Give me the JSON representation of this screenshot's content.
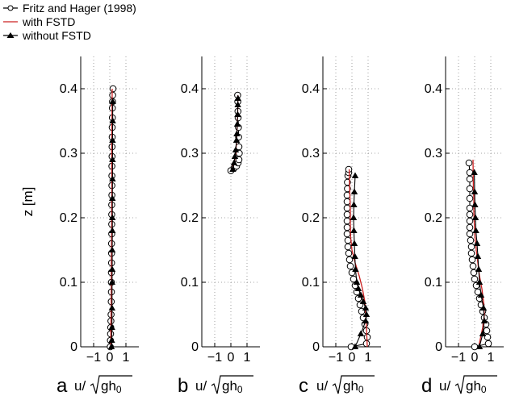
{
  "chart_data": [
    {
      "type": "line",
      "panel": "a",
      "xlabel": "u/√gh0",
      "ylabel": "z [m]",
      "xlim": [
        -1.8,
        1.8
      ],
      "ylim": [
        0,
        0.45
      ],
      "xticks": [
        -1,
        0,
        1
      ],
      "yticks": [
        0,
        0.1,
        0.2,
        0.3,
        0.4
      ],
      "grid": true,
      "series": [
        {
          "name": "Fritz and Hager (1998)",
          "marker": "open-circle",
          "color": "#000000",
          "x": [
            0.03,
            0.04,
            0.05,
            0.06,
            0.07,
            0.08,
            0.09,
            0.1,
            0.1,
            0.1,
            0.11,
            0.11,
            0.11,
            0.12,
            0.12,
            0.12,
            0.12,
            0.13,
            0.13,
            0.13,
            0.13,
            0.14,
            0.14,
            0.15,
            0.15,
            0.16,
            0.16,
            0.17,
            0.18,
            0.2
          ],
          "y": [
            0.0,
            0.01,
            0.02,
            0.03,
            0.04,
            0.05,
            0.07,
            0.085,
            0.1,
            0.115,
            0.13,
            0.145,
            0.16,
            0.175,
            0.19,
            0.205,
            0.22,
            0.235,
            0.25,
            0.265,
            0.28,
            0.295,
            0.31,
            0.325,
            0.34,
            0.355,
            0.37,
            0.38,
            0.39,
            0.4
          ]
        },
        {
          "name": "with FSTD",
          "marker": "none",
          "color": "#cc2020",
          "x": [
            0.06,
            0.07,
            0.09,
            0.1,
            0.1,
            0.11,
            0.12,
            0.12,
            0.13,
            0.12,
            0.12,
            0.13,
            0.14,
            0.15
          ],
          "y": [
            0.0,
            0.03,
            0.06,
            0.1,
            0.13,
            0.16,
            0.19,
            0.22,
            0.25,
            0.28,
            0.31,
            0.34,
            0.37,
            0.4
          ]
        },
        {
          "name": "without FSTD",
          "marker": "filled-triangle",
          "color": "#000000",
          "x": [
            0.1,
            0.12,
            0.13,
            0.14,
            0.14,
            0.15,
            0.15,
            0.16,
            0.16,
            0.16,
            0.17,
            0.17,
            0.17,
            0.18,
            0.18
          ],
          "y": [
            0.0,
            0.01,
            0.03,
            0.06,
            0.1,
            0.12,
            0.15,
            0.18,
            0.2,
            0.23,
            0.26,
            0.29,
            0.32,
            0.35,
            0.38
          ]
        }
      ]
    },
    {
      "type": "line",
      "panel": "b",
      "xlabel": "u/√gh0",
      "xlim": [
        -1.8,
        1.8
      ],
      "ylim": [
        0,
        0.45
      ],
      "xticks": [
        -1,
        0,
        1
      ],
      "yticks": [
        0,
        0.1,
        0.2,
        0.3,
        0.4
      ],
      "grid": true,
      "series": [
        {
          "name": "Fritz and Hager (1998)",
          "marker": "open-circle",
          "color": "#000000",
          "x": [
            0.0,
            0.2,
            0.35,
            0.45,
            0.5,
            0.52,
            0.5,
            0.48,
            0.47,
            0.45,
            0.44,
            0.43,
            0.42
          ],
          "y": [
            0.273,
            0.277,
            0.28,
            0.285,
            0.29,
            0.3,
            0.31,
            0.325,
            0.34,
            0.355,
            0.365,
            0.38,
            0.39
          ]
        },
        {
          "name": "with FSTD",
          "marker": "none",
          "color": "#cc2020",
          "x": [
            0.02,
            0.1,
            0.2,
            0.28,
            0.33,
            0.37,
            0.4,
            0.42,
            0.43,
            0.44
          ],
          "y": [
            0.273,
            0.278,
            0.285,
            0.295,
            0.31,
            0.33,
            0.35,
            0.36,
            0.375,
            0.39
          ]
        },
        {
          "name": "without FSTD",
          "marker": "filled-triangle",
          "color": "#000000",
          "x": [
            0.12,
            0.2,
            0.25,
            0.3,
            0.35,
            0.37,
            0.4,
            0.42,
            0.43,
            0.44
          ],
          "y": [
            0.275,
            0.285,
            0.295,
            0.305,
            0.32,
            0.33,
            0.345,
            0.36,
            0.375,
            0.385
          ]
        }
      ]
    },
    {
      "type": "line",
      "panel": "c",
      "xlabel": "u/√gh0",
      "xlim": [
        -1.8,
        1.8
      ],
      "ylim": [
        0,
        0.45
      ],
      "xticks": [
        -1,
        0,
        1
      ],
      "yticks": [
        0,
        0.1,
        0.2,
        0.3,
        0.4
      ],
      "grid": true,
      "series": [
        {
          "name": "Fritz and Hager (1998)",
          "marker": "open-circle",
          "color": "#000000",
          "x": [
            -0.05,
            0.9,
            0.95,
            0.9,
            0.8,
            0.7,
            0.6,
            0.5,
            0.4,
            0.3,
            0.2,
            0.1,
            0.0,
            -0.1,
            -0.15,
            -0.2,
            -0.25,
            -0.25,
            -0.3,
            -0.3,
            -0.3,
            -0.3,
            -0.3,
            -0.3,
            -0.3,
            -0.28,
            -0.28,
            -0.25,
            -0.2,
            -0.2
          ],
          "y": [
            0.0,
            0.005,
            0.015,
            0.025,
            0.035,
            0.045,
            0.055,
            0.065,
            0.075,
            0.085,
            0.095,
            0.105,
            0.115,
            0.125,
            0.135,
            0.145,
            0.155,
            0.165,
            0.175,
            0.185,
            0.195,
            0.205,
            0.215,
            0.225,
            0.235,
            0.245,
            0.255,
            0.265,
            0.27,
            0.275
          ]
        },
        {
          "name": "with FSTD",
          "marker": "none",
          "color": "#cc2020",
          "x": [
            0.95,
            0.9,
            0.85,
            0.8,
            0.65,
            0.45,
            0.2,
            0.0,
            -0.08,
            -0.1,
            -0.1,
            -0.12,
            -0.15,
            -0.17
          ],
          "y": [
            0.0,
            0.03,
            0.05,
            0.07,
            0.09,
            0.11,
            0.13,
            0.15,
            0.17,
            0.19,
            0.21,
            0.23,
            0.25,
            0.275
          ]
        },
        {
          "name": "without FSTD",
          "marker": "filled-triangle",
          "color": "#000000",
          "x": [
            0.2,
            0.55,
            0.85,
            0.9,
            0.85,
            0.7,
            0.55,
            0.4,
            0.3,
            0.22,
            0.18,
            0.15,
            0.12,
            0.1,
            0.12,
            0.15,
            0.2
          ],
          "y": [
            0.0,
            0.02,
            0.04,
            0.05,
            0.06,
            0.07,
            0.08,
            0.09,
            0.1,
            0.12,
            0.14,
            0.16,
            0.18,
            0.2,
            0.22,
            0.24,
            0.265
          ]
        }
      ]
    },
    {
      "type": "line",
      "panel": "d",
      "xlabel": "u/√gh0",
      "xlim": [
        -1.8,
        1.8
      ],
      "ylim": [
        0,
        0.45
      ],
      "xticks": [
        -1,
        0,
        1
      ],
      "yticks": [
        0,
        0.1,
        0.2,
        0.3,
        0.4
      ],
      "grid": true,
      "series": [
        {
          "name": "Fritz and Hager (1998)",
          "marker": "open-circle",
          "color": "#000000",
          "x": [
            0.0,
            0.85,
            0.8,
            0.75,
            0.7,
            0.6,
            0.5,
            0.4,
            0.3,
            0.2,
            0.1,
            0.0,
            -0.05,
            -0.1,
            -0.15,
            -0.2,
            -0.2,
            -0.25,
            -0.3,
            -0.3,
            -0.3,
            -0.3,
            -0.3,
            -0.3,
            -0.3,
            -0.3,
            -0.3,
            -0.35
          ],
          "y": [
            0.0,
            0.005,
            0.015,
            0.025,
            0.035,
            0.045,
            0.055,
            0.065,
            0.075,
            0.085,
            0.095,
            0.105,
            0.115,
            0.125,
            0.135,
            0.145,
            0.155,
            0.165,
            0.175,
            0.185,
            0.195,
            0.205,
            0.215,
            0.23,
            0.245,
            0.26,
            0.27,
            0.285
          ]
        },
        {
          "name": "with FSTD",
          "marker": "none",
          "color": "#cc2020",
          "x": [
            0.25,
            0.5,
            0.6,
            0.55,
            0.45,
            0.3,
            0.2,
            0.1,
            0.02,
            -0.02,
            -0.05,
            -0.05,
            -0.08,
            -0.1
          ],
          "y": [
            0.0,
            0.03,
            0.05,
            0.07,
            0.09,
            0.11,
            0.13,
            0.15,
            0.17,
            0.19,
            0.21,
            0.23,
            0.25,
            0.29
          ]
        },
        {
          "name": "without FSTD",
          "marker": "filled-triangle",
          "color": "#000000",
          "x": [
            0.3,
            0.5,
            0.6,
            0.55,
            0.4,
            0.3,
            0.25,
            0.2,
            0.15,
            0.08,
            0.05,
            0.02,
            0.0,
            -0.02
          ],
          "y": [
            0.0,
            0.02,
            0.04,
            0.06,
            0.08,
            0.1,
            0.12,
            0.14,
            0.16,
            0.18,
            0.2,
            0.22,
            0.24,
            0.27
          ]
        }
      ]
    }
  ],
  "legend": [
    {
      "label": "Fritz and Hager (1998)",
      "marker": "open-circle",
      "color": "#000000"
    },
    {
      "label": "with FSTD",
      "marker": "none",
      "color": "#cc2020"
    },
    {
      "label": "without FSTD",
      "marker": "filled-triangle",
      "color": "#000000"
    }
  ],
  "panel_letters": [
    "a",
    "b",
    "c",
    "d"
  ],
  "ylabel_text": "z [m]",
  "xlabel_text": "u/",
  "xlabel_root_text": "gh0"
}
